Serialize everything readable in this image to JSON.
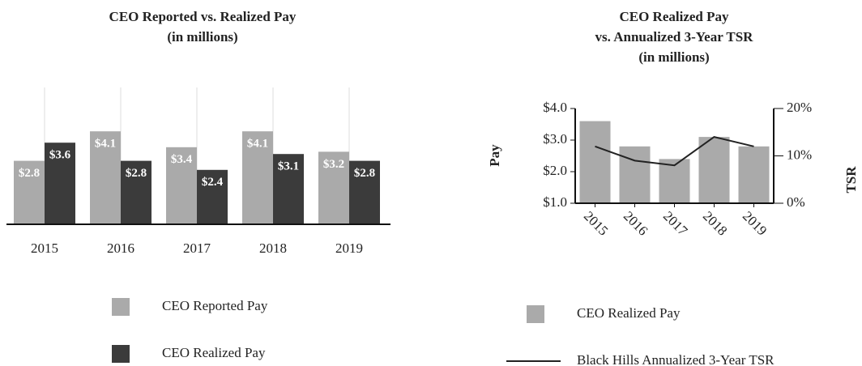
{
  "chart_data": [
    {
      "type": "bar",
      "title": "CEO Reported vs. Realized Pay",
      "subtitle": "(in millions)",
      "categories": [
        "2015",
        "2016",
        "2017",
        "2018",
        "2019"
      ],
      "series": [
        {
          "name": "CEO Reported Pay",
          "color": "#aaaaaa",
          "values": [
            2.8,
            4.1,
            3.4,
            4.1,
            3.2
          ],
          "value_labels": [
            "$2.8",
            "$4.1",
            "$3.4",
            "$4.1",
            "$3.2"
          ]
        },
        {
          "name": "CEO Realized Pay",
          "color": "#3b3b3b",
          "values": [
            3.6,
            2.8,
            2.4,
            3.1,
            2.8
          ],
          "value_labels": [
            "$3.6",
            "$2.8",
            "$2.4",
            "$3.1",
            "$2.8"
          ]
        }
      ],
      "legend": "bottom"
    },
    {
      "type": "bar_line",
      "title": "CEO Realized Pay",
      "subtitle": [
        "vs. Annualized 3-Year TSR",
        "(in millions)"
      ],
      "ylabel": "Pay",
      "y2label": "TSR",
      "categories": [
        "2015",
        "2016",
        "2017",
        "2018",
        "2019"
      ],
      "series": [
        {
          "name": "CEO Realized Pay",
          "type": "bar",
          "color": "#aaaaaa",
          "values": [
            3.6,
            2.8,
            2.4,
            3.1,
            2.8
          ]
        },
        {
          "name": "Black Hills Annualized 3-Year TSR",
          "type": "line",
          "axis": "y2",
          "color": "#222222",
          "values": [
            12,
            9,
            8,
            14,
            12
          ]
        }
      ],
      "ylim": [
        1,
        4
      ],
      "yticks": [
        {
          "value": 1,
          "label": "$1.0"
        },
        {
          "value": 2,
          "label": "$2.0"
        },
        {
          "value": 3,
          "label": "$3.0"
        },
        {
          "value": 4,
          "label": "$4.0"
        }
      ],
      "y2lim": [
        0,
        20
      ],
      "y2ticks": [
        {
          "value": 0,
          "label": "0%"
        },
        {
          "value": 10,
          "label": "10%"
        },
        {
          "value": 20,
          "label": "20%"
        }
      ],
      "legend": "bottom"
    }
  ]
}
